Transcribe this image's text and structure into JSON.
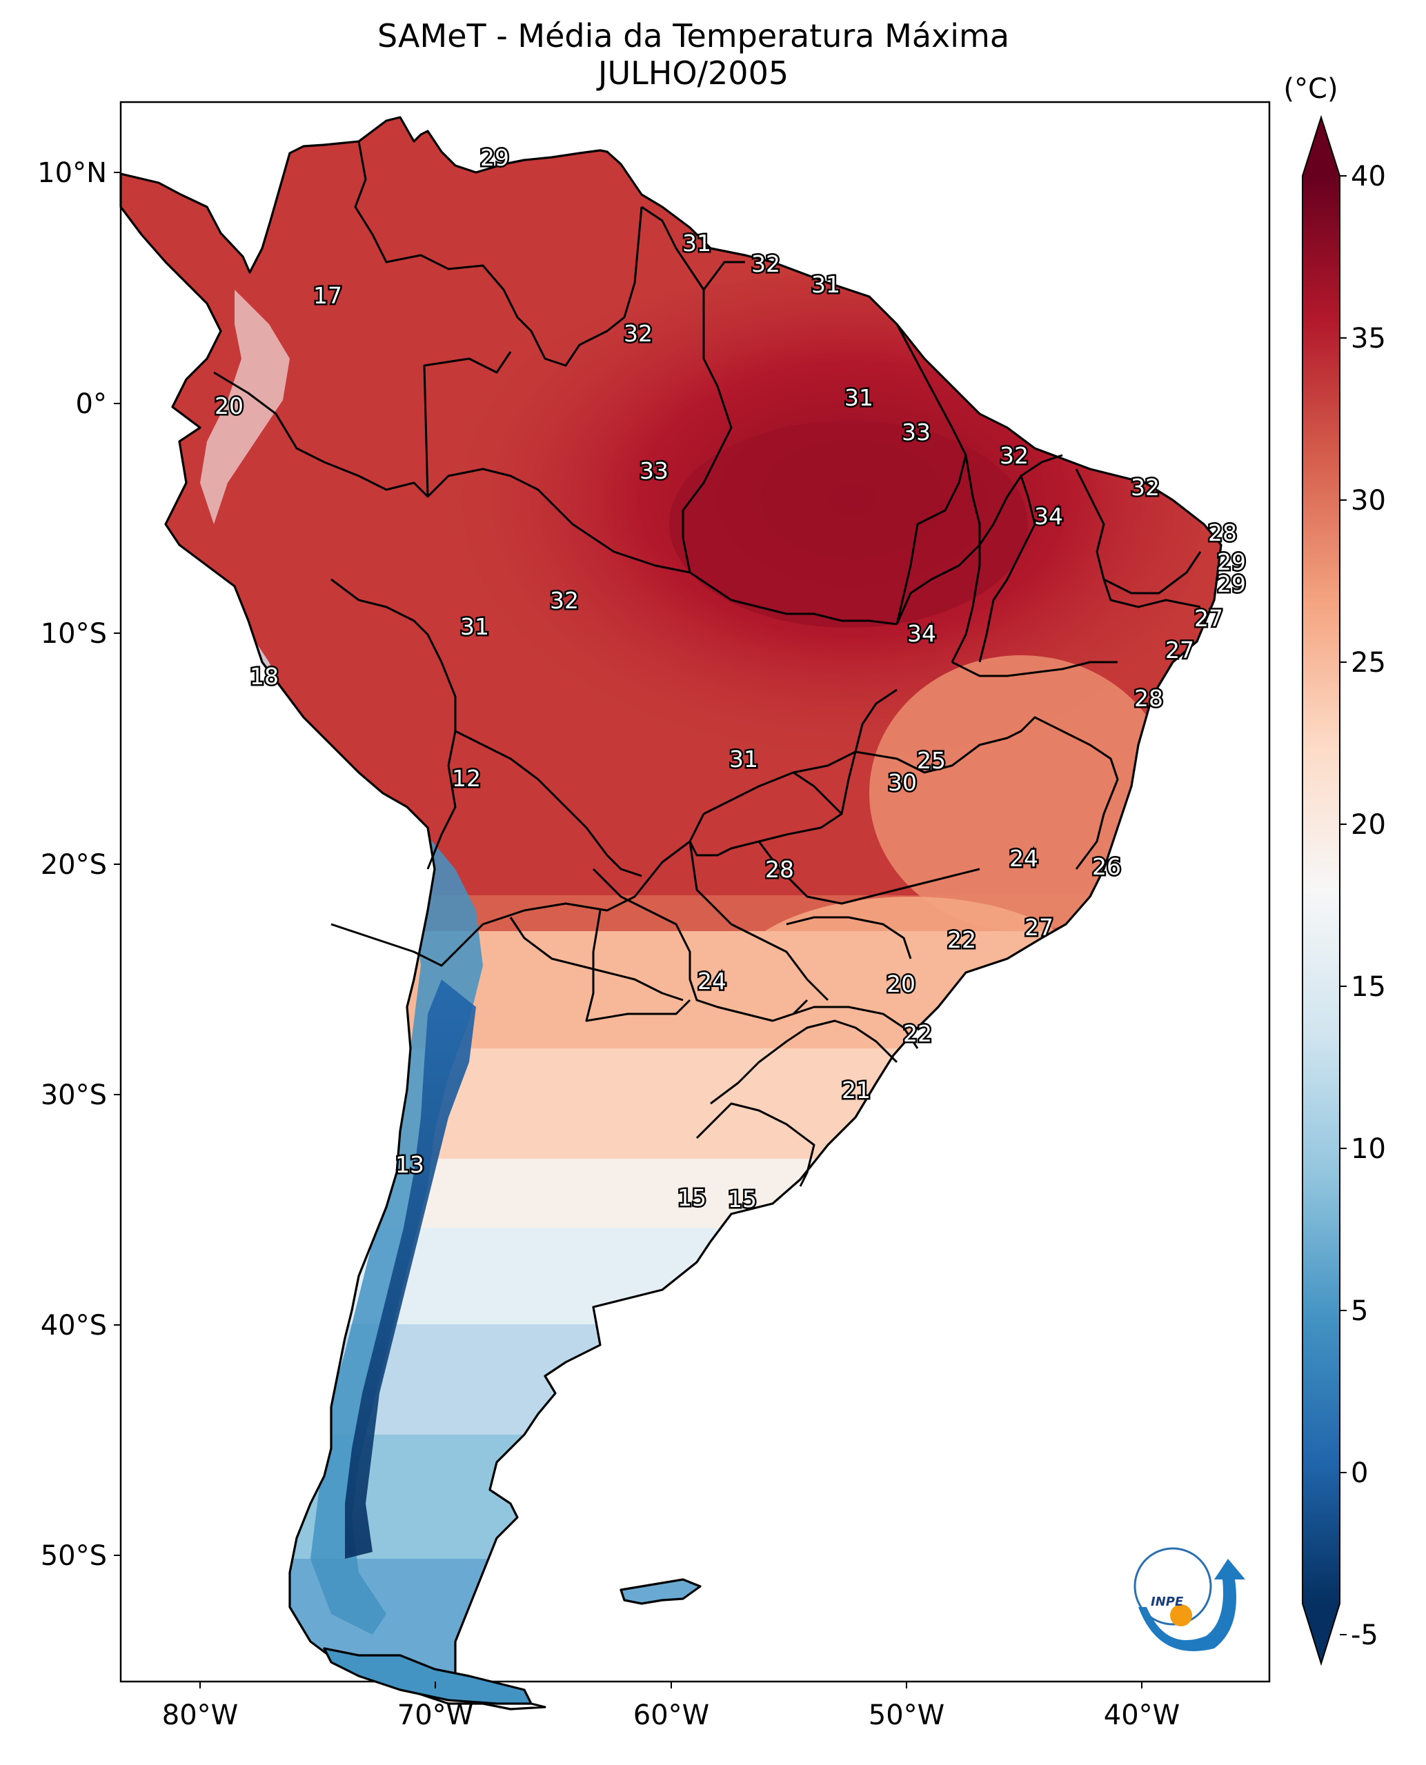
{
  "title": "SAMeT - Média da Temperatura Máxima",
  "subtitle": "JULHO/2005",
  "colorbar": {
    "unit": "(°C)",
    "ticks": [
      "40",
      "35",
      "30",
      "25",
      "20",
      "15",
      "10",
      "5",
      "0",
      "-5"
    ],
    "min": -7,
    "max": 40,
    "colors": [
      "#053061",
      "#2166ac",
      "#4393c3",
      "#92c5de",
      "#d1e5f0",
      "#f7f7f7",
      "#fddbc7",
      "#f4a582",
      "#d6604d",
      "#b2182b",
      "#67001f"
    ]
  },
  "axes": {
    "lat_labels": [
      "10°N",
      "0°",
      "10°S",
      "20°S",
      "30°S",
      "40°S",
      "50°S"
    ],
    "lon_labels": [
      "80°W",
      "70°W",
      "60°W",
      "50°W",
      "40°W"
    ]
  },
  "contour_labels": [
    "29",
    "31",
    "32",
    "31",
    "17",
    "32",
    "20",
    "31",
    "33",
    "32",
    "33",
    "32",
    "34",
    "28",
    "29",
    "29",
    "32",
    "31",
    "34",
    "27",
    "27",
    "18",
    "28",
    "25",
    "12",
    "31",
    "30",
    "24",
    "26",
    "28",
    "22",
    "27",
    "24",
    "20",
    "22",
    "21",
    "13",
    "15",
    "15"
  ],
  "logo": {
    "text": "INPE"
  },
  "icons": {
    "logo": "inpe-logo-icon"
  }
}
